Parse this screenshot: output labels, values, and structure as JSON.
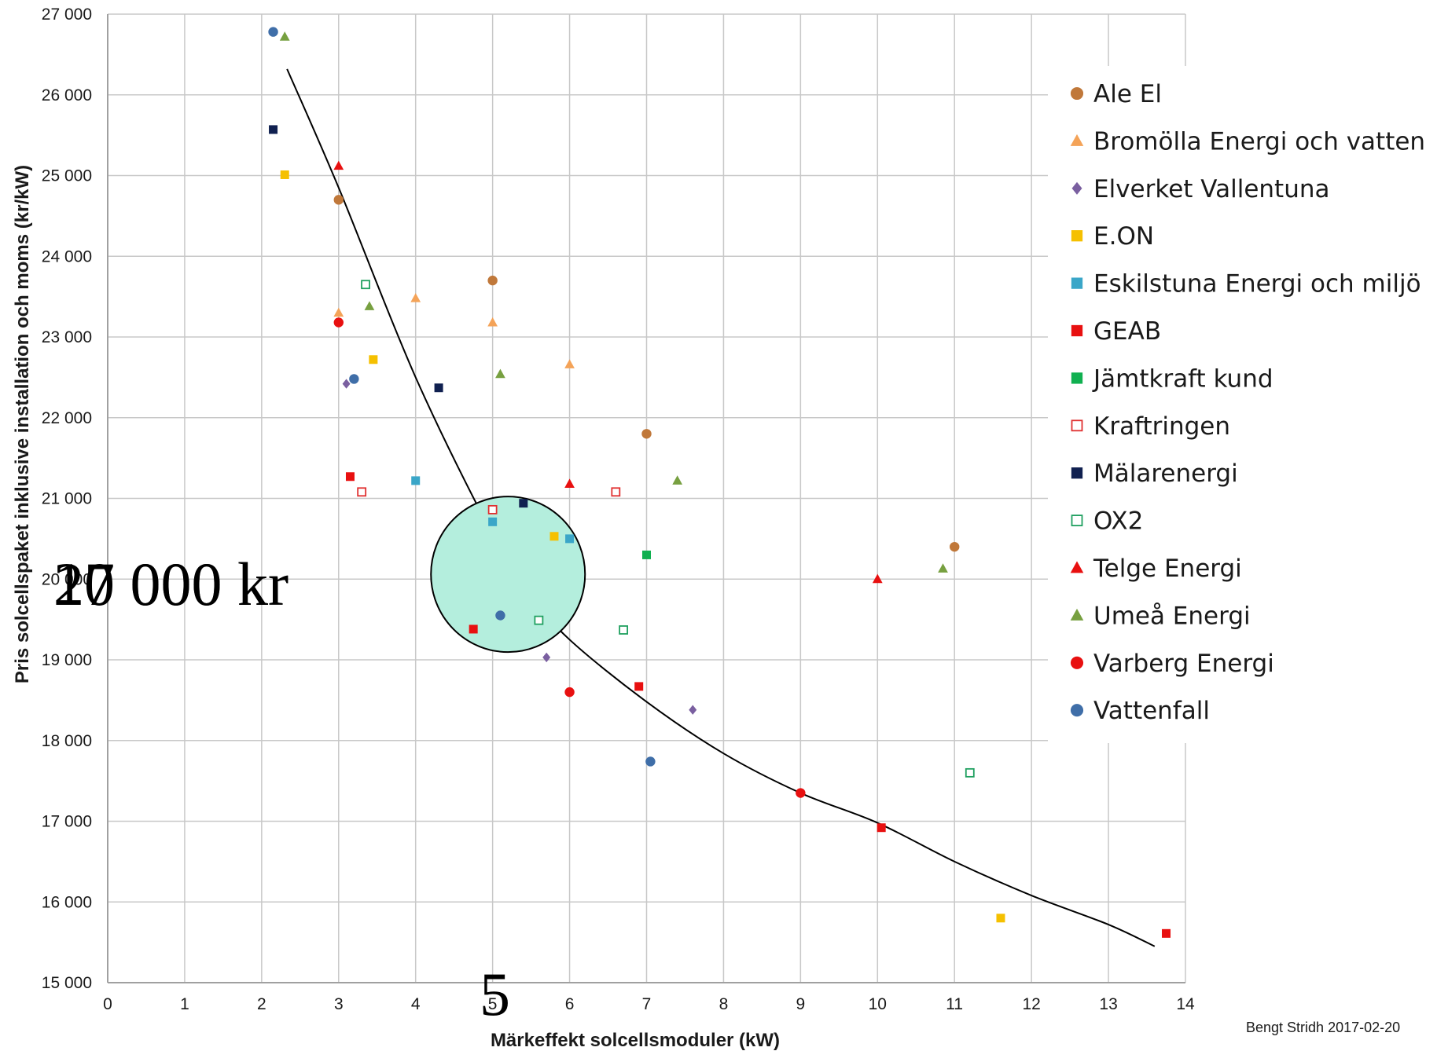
{
  "chart_data": {
    "type": "scatter",
    "xlabel": "Märkeffekt solcellsmoduler (kW)",
    "ylabel": "Pris solcellspaket inklusive installation och moms (kr/kW)",
    "xlim": [
      0,
      14
    ],
    "ylim": [
      15000,
      27000
    ],
    "x_ticks": [
      "0",
      "1",
      "2",
      "3",
      "4",
      "5",
      "6",
      "7",
      "8",
      "9",
      "10",
      "11",
      "12",
      "13",
      "14"
    ],
    "y_ticks": [
      "15 000",
      "16 000",
      "17 000",
      "18 000",
      "19 000",
      "20 000",
      "21 000",
      "22 000",
      "23 000",
      "24 000",
      "25 000",
      "26 000",
      "27 000"
    ],
    "grid": true,
    "legend_position": "right",
    "series": [
      {
        "name": "Ale El",
        "marker": "circle",
        "color": "#c0783a",
        "points": [
          [
            3.0,
            24700
          ],
          [
            5.0,
            23700
          ],
          [
            7.0,
            21800
          ],
          [
            11.0,
            20400
          ]
        ]
      },
      {
        "name": "Bromölla Energi och vatten",
        "marker": "triangle",
        "color": "#f4a358",
        "points": [
          [
            3.0,
            23300
          ],
          [
            4.0,
            23480
          ],
          [
            5.0,
            23180
          ],
          [
            6.0,
            22660
          ]
        ]
      },
      {
        "name": "Elverket Vallentuna",
        "marker": "diamond",
        "color": "#7a5fa0",
        "points": [
          [
            3.1,
            22420
          ],
          [
            5.7,
            19030
          ],
          [
            7.6,
            18380
          ]
        ]
      },
      {
        "name": "E.ON",
        "marker": "square",
        "color": "#f5c000",
        "points": [
          [
            2.3,
            25010
          ],
          [
            3.45,
            22720
          ],
          [
            5.8,
            20530
          ],
          [
            11.6,
            15800
          ]
        ]
      },
      {
        "name": "Eskilstuna Energi och miljö",
        "marker": "square",
        "color": "#3aa6c8",
        "points": [
          [
            4.0,
            21220
          ],
          [
            5.0,
            20710
          ],
          [
            6.0,
            20500
          ]
        ]
      },
      {
        "name": "GEAB",
        "marker": "square",
        "color": "#e81010",
        "points": [
          [
            3.15,
            21270
          ],
          [
            4.75,
            19380
          ],
          [
            6.9,
            18670
          ],
          [
            10.05,
            16920
          ],
          [
            13.75,
            15610
          ]
        ]
      },
      {
        "name": "Jämtkraft kund",
        "marker": "square",
        "color": "#10b050",
        "points": [
          [
            7.0,
            20300
          ]
        ]
      },
      {
        "name": "Kraftringen",
        "marker": "open-square",
        "color": "#e03030",
        "points": [
          [
            3.3,
            21080
          ],
          [
            5.0,
            20860
          ],
          [
            6.6,
            21080
          ]
        ]
      },
      {
        "name": "Mälarenergi",
        "marker": "square",
        "color": "#102050",
        "points": [
          [
            2.15,
            25570
          ],
          [
            4.3,
            22370
          ],
          [
            5.4,
            20940
          ]
        ]
      },
      {
        "name": "OX2",
        "marker": "open-square",
        "color": "#20a060",
        "points": [
          [
            3.35,
            23650
          ],
          [
            5.6,
            19490
          ],
          [
            6.7,
            19370
          ],
          [
            11.2,
            17600
          ]
        ]
      },
      {
        "name": "Telge Energi",
        "marker": "triangle",
        "color": "#e81010",
        "points": [
          [
            3.0,
            25120
          ],
          [
            6.0,
            21180
          ],
          [
            10.0,
            20000
          ]
        ]
      },
      {
        "name": "Umeå Energi",
        "marker": "triangle",
        "color": "#77a040",
        "points": [
          [
            2.3,
            26720
          ],
          [
            3.4,
            23380
          ],
          [
            5.1,
            22540
          ],
          [
            7.4,
            21220
          ],
          [
            10.85,
            20130
          ]
        ]
      },
      {
        "name": "Varberg Energi",
        "marker": "circle",
        "color": "#e81010",
        "points": [
          [
            3.0,
            23180
          ],
          [
            6.0,
            18600
          ],
          [
            9.0,
            17350
          ]
        ]
      },
      {
        "name": "Vattenfall",
        "marker": "circle",
        "color": "#3f6ea8",
        "points": [
          [
            2.15,
            26780
          ],
          [
            3.2,
            22480
          ],
          [
            5.1,
            19550
          ],
          [
            7.05,
            17740
          ]
        ]
      }
    ],
    "trendline": {
      "x_range": [
        2.33,
        13.6
      ],
      "points": [
        [
          2.33,
          26320
        ],
        [
          3.0,
          24850
        ],
        [
          4.0,
          22500
        ],
        [
          5.0,
          20550
        ],
        [
          5.5,
          19800
        ],
        [
          6.0,
          19250
        ],
        [
          7.0,
          18480
        ],
        [
          8.0,
          17840
        ],
        [
          9.0,
          17350
        ],
        [
          10.0,
          16980
        ],
        [
          11.0,
          16500
        ],
        [
          12.0,
          16080
        ],
        [
          13.0,
          15720
        ],
        [
          13.6,
          15450
        ]
      ]
    },
    "highlight_ellipse": {
      "center": [
        5.2,
        20060
      ]
    },
    "annotations": [
      "20 000 kr",
      "17 000 kr",
      "5"
    ],
    "credit": "Bengt Stridh 2017-02-20"
  }
}
